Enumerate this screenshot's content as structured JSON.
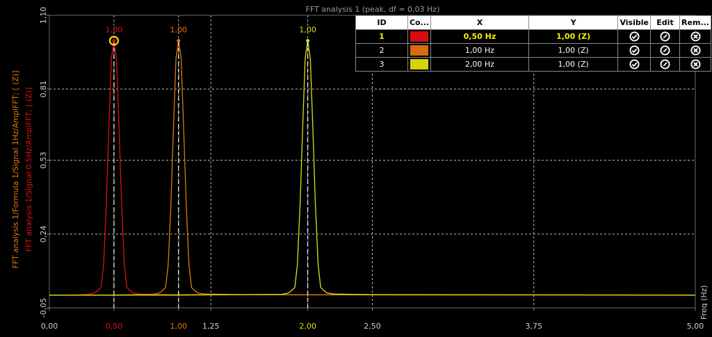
{
  "chart_data": {
    "type": "line",
    "title": "FFT analysis 1 (peak, df = 0,03 Hz)",
    "xlabel": "Freq (Hz)",
    "ylabels": [
      "FFT analysis 1/Formula 1/Signal 1Hz/AmplFFT; [ (Z)]",
      "FFT analysis 1/Signal 0.5Hz/AmplFFT; [ (Z)]"
    ],
    "xlim": [
      0,
      5
    ],
    "ylim": [
      -0.05,
      1.1
    ],
    "xticks": [
      "0,00",
      "0,50",
      "1,00",
      "1,25",
      "2,00",
      "2,50",
      "3,75",
      "5,00"
    ],
    "xtick_values": [
      0,
      0.5,
      1.0,
      1.25,
      2.0,
      2.5,
      3.75,
      5.0
    ],
    "yticks": [
      "-0,05",
      "0,24",
      "0,53",
      "0,81",
      "1,10"
    ],
    "ytick_values": [
      -0.05,
      0.24,
      0.53,
      0.81,
      1.1
    ],
    "grid": true,
    "series": [
      {
        "color": "#e01010",
        "peak_x": 0.5,
        "peak_y": 1.0,
        "x": [
          0,
          0.1,
          0.2,
          0.3,
          0.35,
          0.38,
          0.4,
          0.42,
          0.44,
          0.46,
          0.48,
          0.5,
          0.52,
          0.54,
          0.56,
          0.58,
          0.6,
          0.62,
          0.65,
          0.7,
          0.8,
          1.0,
          2.0,
          5.0
        ],
        "y": [
          0,
          0,
          0,
          0.003,
          0.008,
          0.02,
          0.03,
          0.12,
          0.35,
          0.65,
          0.93,
          1.0,
          0.93,
          0.65,
          0.35,
          0.12,
          0.03,
          0.02,
          0.008,
          0.004,
          0.003,
          0.002,
          0.001,
          0
        ]
      },
      {
        "color": "#e07a10",
        "peak_x": 1.0,
        "peak_y": 1.0,
        "x": [
          0,
          0.5,
          0.8,
          0.85,
          0.88,
          0.9,
          0.92,
          0.94,
          0.96,
          0.98,
          1.0,
          1.02,
          1.04,
          1.06,
          1.08,
          1.1,
          1.12,
          1.15,
          1.2,
          1.5,
          2.0,
          5.0
        ],
        "y": [
          0,
          0,
          0.003,
          0.008,
          0.02,
          0.03,
          0.12,
          0.35,
          0.65,
          0.93,
          1.0,
          0.93,
          0.65,
          0.35,
          0.12,
          0.03,
          0.02,
          0.008,
          0.004,
          0.002,
          0.001,
          0
        ]
      },
      {
        "color": "#e0e010",
        "peak_x": 2.0,
        "peak_y": 1.0,
        "x": [
          0,
          1.0,
          1.5,
          1.8,
          1.85,
          1.88,
          1.9,
          1.92,
          1.94,
          1.96,
          1.98,
          2.0,
          2.02,
          2.04,
          2.06,
          2.08,
          2.1,
          2.12,
          2.15,
          2.2,
          2.5,
          5.0
        ],
        "y": [
          0,
          0,
          0.002,
          0.003,
          0.008,
          0.02,
          0.03,
          0.12,
          0.35,
          0.65,
          0.93,
          1.0,
          0.93,
          0.65,
          0.35,
          0.12,
          0.03,
          0.02,
          0.008,
          0.004,
          0.002,
          0
        ]
      }
    ],
    "peak_labels": [
      "1,00",
      "1,00",
      "1,00"
    ]
  },
  "cursor_table": {
    "headers": {
      "id": "ID",
      "color": "Co...",
      "x": "X",
      "y": "Y",
      "visible": "Visible",
      "edit": "Edit",
      "remove": "Rem..."
    },
    "rows": [
      {
        "id": "1",
        "color": "#d40f0f",
        "x": "0,50 Hz",
        "y": "1,00  (Z)",
        "selected": true
      },
      {
        "id": "2",
        "color": "#d76c0c",
        "x": "1,00 Hz",
        "y": "1,00  (Z)",
        "selected": false
      },
      {
        "id": "3",
        "color": "#d4d40c",
        "x": "2,00 Hz",
        "y": "1,00  (Z)",
        "selected": false
      }
    ]
  },
  "colors": {
    "background": "#000000",
    "axis_text": "#d0d0d0",
    "grid": "#bdbdbd",
    "title_text": "#9a9a9a",
    "highlight": "#ffee00"
  }
}
